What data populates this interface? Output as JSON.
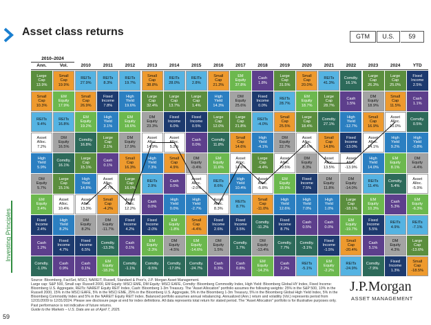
{
  "header": {
    "title": "Asset class returns",
    "tags": [
      "GTM",
      "U.S.",
      "59"
    ]
  },
  "side_label": "Investing Principles",
  "page_number": "59",
  "table": {
    "group_header": "2010–2024",
    "colors": {
      "Large Cap": "#5b8e3e",
      "Small Cap": "#ee9a2e",
      "REITs": "#55b3e2",
      "EM Equity": "#6cb84e",
      "Fixed Income": "#1d3a6e",
      "High Yield": "#2b7fc1",
      "DM Equity": "#a3a3a3",
      "Asset Alloc.": "#ffffff",
      "Cash": "#5d3f8c",
      "Comdty.": "#2d6a5a"
    },
    "columns": [
      {
        "header": "Ann.",
        "cells": [
          [
            "Large Cap",
            "13.9%"
          ],
          [
            "Small Cap",
            "10.3%"
          ],
          [
            "REITs",
            "9.4%"
          ],
          [
            "Asset Alloc.",
            "7.2%"
          ],
          [
            "High Yield",
            "5.9%"
          ],
          [
            "DM Equity",
            "5.7%"
          ],
          [
            "EM Equity",
            "3.4%"
          ],
          [
            "Fixed Income",
            "2.4%"
          ],
          [
            "Cash",
            "1.2%"
          ],
          [
            "Comdty.",
            "-1.0%"
          ]
        ]
      },
      {
        "header": "Vol.",
        "cells": [
          [
            "Small Cap",
            "19.9%"
          ],
          [
            "EM Equity",
            "17.9%"
          ],
          [
            "REITs",
            "16.8%"
          ],
          [
            "DM Equity",
            "16.5%"
          ],
          [
            "Comdty.",
            "16.1%"
          ],
          [
            "Large Cap",
            "15.1%"
          ],
          [
            "Asset Alloc.",
            "10.4%"
          ],
          [
            "High Yield",
            "8.2%"
          ],
          [
            "Fixed Income",
            "4.7%"
          ],
          [
            "Cash",
            "0.9%"
          ]
        ]
      },
      {
        "header": "2010",
        "cells": [
          [
            "REITs",
            "27.9%"
          ],
          [
            "Small Cap",
            "26.9%"
          ],
          [
            "EM Equity",
            "19.2%"
          ],
          [
            "Comdty.",
            "16.8%"
          ],
          [
            "Large Cap",
            "15.1%"
          ],
          [
            "High Yield",
            "14.8%"
          ],
          [
            "Asset Alloc.",
            "13.3%"
          ],
          [
            "DM Equity",
            "8.2%"
          ],
          [
            "Fixed Income",
            "6.5%"
          ],
          [
            "Cash",
            "0.1%"
          ]
        ]
      },
      {
        "header": "2011",
        "cells": [
          [
            "REITs",
            "8.3%"
          ],
          [
            "Fixed Income",
            "7.8%"
          ],
          [
            "High Yield",
            "3.1%"
          ],
          [
            "Large Cap",
            "2.1%"
          ],
          [
            "Cash",
            "0.1%"
          ],
          [
            "Asset Alloc.",
            "-0.7%"
          ],
          [
            "Small Cap",
            "-4.2%"
          ],
          [
            "DM Equity",
            "-11.7%"
          ],
          [
            "Comdty.",
            "-13.3%"
          ],
          [
            "EM Equity",
            "-18.2%"
          ]
        ]
      },
      {
        "header": "2012",
        "cells": [
          [
            "REITs",
            "19.7%"
          ],
          [
            "High Yield",
            "19.6%"
          ],
          [
            "EM Equity",
            "18.6%"
          ],
          [
            "DM Equity",
            "17.9%"
          ],
          [
            "Small Cap",
            "16.3%"
          ],
          [
            "Large Cap",
            "16.0%"
          ],
          [
            "Asset Alloc.",
            "12.2%"
          ],
          [
            "Fixed Income",
            "4.2%"
          ],
          [
            "Cash",
            "0.1%"
          ],
          [
            "Comdty.",
            "-1.1%"
          ]
        ]
      },
      {
        "header": "2013",
        "cells": [
          [
            "Small Cap",
            "38.8%"
          ],
          [
            "Large Cap",
            "32.4%"
          ],
          [
            "DM Equity",
            "23.3%"
          ],
          [
            "Asset Alloc.",
            "14.9%"
          ],
          [
            "High Yield",
            "7.3%"
          ],
          [
            "REITs",
            "2.9%"
          ],
          [
            "Cash",
            "0.0%"
          ],
          [
            "Fixed Income",
            "-2.0%"
          ],
          [
            "EM Equity",
            "-2.3%"
          ],
          [
            "Comdty.",
            "-9.5%"
          ]
        ]
      },
      {
        "header": "2014",
        "cells": [
          [
            "REITs",
            "28.0%"
          ],
          [
            "Large Cap",
            "13.7%"
          ],
          [
            "Fixed Income",
            "6.0%"
          ],
          [
            "Asset Alloc.",
            "5.2%"
          ],
          [
            "Small Cap",
            "4.9%"
          ],
          [
            "Cash",
            "0.0%"
          ],
          [
            "High Yield",
            "0.0%"
          ],
          [
            "EM Equity",
            "-1.8%"
          ],
          [
            "DM Equity",
            "-4.5%"
          ],
          [
            "Comdty.",
            "-17.0%"
          ]
        ]
      },
      {
        "header": "2015",
        "cells": [
          [
            "REITs",
            "2.8%"
          ],
          [
            "Large Cap",
            "1.4%"
          ],
          [
            "Fixed Income",
            "0.5%"
          ],
          [
            "Cash",
            "0.0%"
          ],
          [
            "DM Equity",
            "-0.4%"
          ],
          [
            "Asset Alloc.",
            "-2.0%"
          ],
          [
            "High Yield",
            "-2.7%"
          ],
          [
            "Small Cap",
            "-4.4%"
          ],
          [
            "EM Equity",
            "-14.6%"
          ],
          [
            "Comdty.",
            "-24.7%"
          ]
        ]
      },
      {
        "header": "2016",
        "cells": [
          [
            "Small Cap",
            "21.3%"
          ],
          [
            "High Yield",
            "14.3%"
          ],
          [
            "Large Cap",
            "12.0%"
          ],
          [
            "Comdty.",
            "11.8%"
          ],
          [
            "EM Equity",
            "11.6%"
          ],
          [
            "REITs",
            "8.6%"
          ],
          [
            "Asset Alloc.",
            "8.3%"
          ],
          [
            "Fixed Income",
            "2.6%"
          ],
          [
            "DM Equity",
            "1.5%"
          ],
          [
            "Cash",
            "0.3%"
          ]
        ]
      },
      {
        "header": "2017",
        "cells": [
          [
            "EM Equity",
            "37.8%"
          ],
          [
            "DM Equity",
            "25.6%"
          ],
          [
            "Large Cap",
            "21.8%"
          ],
          [
            "Small Cap",
            "14.6%"
          ],
          [
            "Asset Alloc.",
            "14.6%"
          ],
          [
            "High Yield",
            "10.4%"
          ],
          [
            "REITs",
            "8.7%"
          ],
          [
            "Fixed Income",
            "3.5%"
          ],
          [
            "Comdty.",
            "1.7%"
          ],
          [
            "Cash",
            "0.8%"
          ]
        ]
      },
      {
        "header": "2018",
        "cells": [
          [
            "Cash",
            "1.8%"
          ],
          [
            "Fixed Income",
            "0.0%"
          ],
          [
            "REITs",
            "-4.0%"
          ],
          [
            "High Yield",
            "-4.1%"
          ],
          [
            "Large Cap",
            "-4.4%"
          ],
          [
            "Asset Alloc.",
            "-5.8%"
          ],
          [
            "Small Cap",
            "-11.0%"
          ],
          [
            "Comdty.",
            "-11.2%"
          ],
          [
            "DM Equity",
            "-13.4%"
          ],
          [
            "EM Equity",
            "-14.2%"
          ]
        ]
      },
      {
        "header": "2019",
        "cells": [
          [
            "Large Cap",
            "31.5%"
          ],
          [
            "REITs",
            "28.7%"
          ],
          [
            "Small Cap",
            "25.5%"
          ],
          [
            "DM Equity",
            "22.7%"
          ],
          [
            "Asset Alloc.",
            "19.5%"
          ],
          [
            "EM Equity",
            "18.9%"
          ],
          [
            "High Yield",
            "12.6%"
          ],
          [
            "Fixed Income",
            "8.7%"
          ],
          [
            "Comdty.",
            "7.7%"
          ],
          [
            "Cash",
            "2.2%"
          ]
        ]
      },
      {
        "header": "2020",
        "cells": [
          [
            "Small Cap",
            "20.0%"
          ],
          [
            "EM Equity",
            "18.7%"
          ],
          [
            "Large Cap",
            "18.4%"
          ],
          [
            "Asset Alloc.",
            "10.6%"
          ],
          [
            "DM Equity",
            "8.3%"
          ],
          [
            "Fixed Income",
            "7.5%"
          ],
          [
            "High Yield",
            "7.0%"
          ],
          [
            "Cash",
            "0.5%"
          ],
          [
            "Comdty.",
            "-3.1%"
          ],
          [
            "REITs",
            "-5.1%"
          ]
        ]
      },
      {
        "header": "2021",
        "cells": [
          [
            "REITs",
            "41.3%"
          ],
          [
            "Large Cap",
            "28.7%"
          ],
          [
            "Comdty.",
            "27.1%"
          ],
          [
            "Small Cap",
            "14.8%"
          ],
          [
            "Asset Alloc.",
            "13.5%"
          ],
          [
            "DM Equity",
            "11.8%"
          ],
          [
            "High Yield",
            "1.0%"
          ],
          [
            "Cash",
            "0.0%"
          ],
          [
            "Fixed Income",
            "-1.5%"
          ],
          [
            "EM Equity",
            "-2.2%"
          ]
        ]
      },
      {
        "header": "2022",
        "cells": [
          [
            "Comdty.",
            "16.1%"
          ],
          [
            "Cash",
            "1.5%"
          ],
          [
            "High Yield",
            "-12.7%"
          ],
          [
            "Fixed Income",
            "-13.0%"
          ],
          [
            "Asset Alloc.",
            "-13.9%"
          ],
          [
            "DM Equity",
            "-14.0%"
          ],
          [
            "Large Cap",
            "-18.1%"
          ],
          [
            "EM Equity",
            "-19.7%"
          ],
          [
            "Small Cap",
            "-20.4%"
          ],
          [
            "REITs",
            "-24.9%"
          ]
        ]
      },
      {
        "header": "2023",
        "cells": [
          [
            "Large Cap",
            "26.3%"
          ],
          [
            "DM Equity",
            "18.9%"
          ],
          [
            "Small Cap",
            "16.9%"
          ],
          [
            "Asset Alloc.",
            "14.1%"
          ],
          [
            "High Yield",
            "14.0%"
          ],
          [
            "REITs",
            "11.4%"
          ],
          [
            "EM Equity",
            "10.3%"
          ],
          [
            "Fixed Income",
            "5.5%"
          ],
          [
            "Cash",
            "5.1%"
          ],
          [
            "Comdty.",
            "-7.9%"
          ]
        ]
      },
      {
        "header": "2024",
        "cells": [
          [
            "Large Cap",
            "25.0%"
          ],
          [
            "Small Cap",
            "11.5%"
          ],
          [
            "Asset Alloc.",
            "10.0%"
          ],
          [
            "High Yield",
            "9.2%"
          ],
          [
            "EM Equity",
            "8.1%"
          ],
          [
            "Comdty.",
            "5.4%"
          ],
          [
            "Cash",
            "5.3%"
          ],
          [
            "REITs",
            "4.9%"
          ],
          [
            "DM Equity",
            "4.3%"
          ],
          [
            "Fixed Income",
            "1.3%"
          ]
        ]
      },
      {
        "header": "YTD",
        "cells": [
          [
            "Fixed Income",
            "2.5%"
          ],
          [
            "Cash",
            "1.1%"
          ],
          [
            "Comdty.",
            "0.5%"
          ],
          [
            "High Yield",
            "-0.8%"
          ],
          [
            "DM Equity",
            "-4.4%"
          ],
          [
            "Asset Alloc.",
            "-5.9%"
          ],
          [
            "EM Equity",
            "-6.3%"
          ],
          [
            "REITs",
            "-7.1%"
          ],
          [
            "Large Cap",
            "-13.6%"
          ],
          [
            "Small Cap",
            "-18.5%"
          ]
        ]
      }
    ]
  },
  "footer": {
    "source": "Source: Bloomberg, FactSet, MSCI, NAREIT, Russell, Standard & Poor's, J.P. Morgan Asset Management.",
    "notes": "Large cap: S&P 500, Small cap: Russell 2000, EM Equity: MSCI EME, DM Equity: MSCI EAFE, Comdty: Bloomberg Commodity Index, High Yield: Bloomberg Global HY Index, Fixed Income: Bloomberg U.S. Aggregate, REITs: NAREIT Equity REIT Index, Cash: Bloomberg 1-3m Treasury. The \"Asset Allocation\" portfolio assumes the following weights: 25% in the S&P 500, 10% in the Russell 2000, 15% in the MSCI EAFE, 5% in the MSCI EME, 25% in the Bloomberg U.S. Aggregate, 5% in the Bloomberg 1-3m Treasury, 5% in the Bloomberg Global High Yield Index, 5% in the Bloomberg Commodity Index and 5% in the NAREIT Equity REIT Index. Balanced portfolio assumes annual rebalancing. Annualized (Ann.) return and volatility (Vol.) represents period from 12/31/2009 to 12/31/2024. Please see disclosure page at end for index definitions. All data represents total return for stated period. The \"Asset Allocation\" portfolio is for illustrative purposes only. Past performance is not indicative of future returns.",
    "guide": "Guide to the Markets – U.S. Data are as of April 7, 2025."
  },
  "logo": {
    "name": "J.P.Morgan",
    "sub": "ASSET MANAGEMENT"
  }
}
